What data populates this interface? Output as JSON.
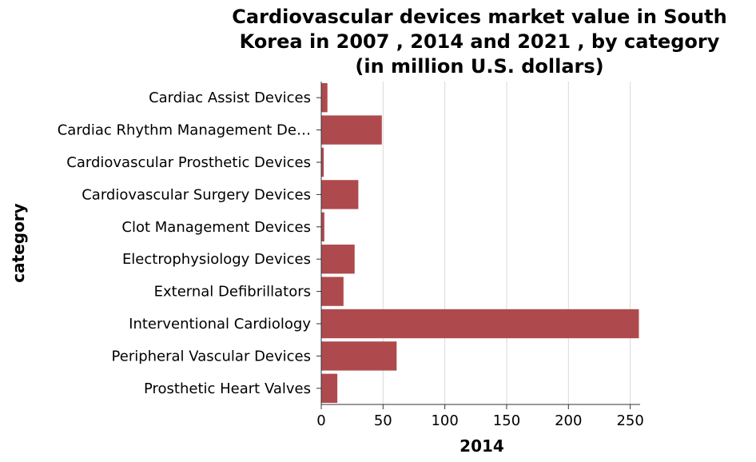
{
  "chart_data": {
    "type": "bar",
    "orientation": "horizontal",
    "title_lines": [
      "Cardiovascular devices market value in South",
      "Korea in 2007 , 2014 and 2021 , by category",
      "(in million U.S. dollars)"
    ],
    "xlabel": "2014",
    "ylabel": "category",
    "categories": [
      "Cardiac Assist Devices",
      "Cardiac Rhythm Management De…",
      "Cardiovascular Prosthetic Devices",
      "Cardiovascular Surgery Devices",
      "Clot Management Devices",
      "Electrophysiology Devices",
      "External Defibrillators",
      "Interventional Cardiology",
      "Peripheral Vascular Devices",
      "Prosthetic Heart Valves"
    ],
    "values": [
      5,
      49,
      2,
      30,
      2.5,
      27,
      18,
      257,
      61,
      13
    ],
    "xlim": [
      0,
      258
    ],
    "xticks": [
      0,
      50,
      100,
      150,
      200,
      250
    ],
    "grid": true,
    "bar_color": "#ae4a4d"
  }
}
